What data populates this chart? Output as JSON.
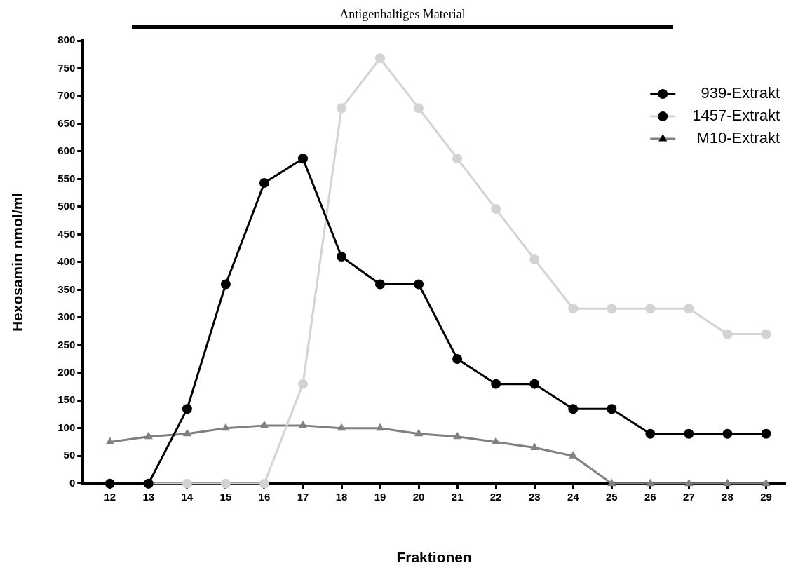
{
  "chart_data": {
    "type": "line",
    "xlabel": "Fraktionen",
    "ylabel": "Hexosamin nmol/ml",
    "x": [
      12,
      13,
      14,
      15,
      16,
      17,
      18,
      19,
      20,
      21,
      22,
      23,
      24,
      25,
      26,
      27,
      28,
      29
    ],
    "series": [
      {
        "name": "939-Extrakt",
        "color": "#000000",
        "marker": "circle",
        "values": [
          0,
          0,
          135,
          360,
          543,
          587,
          410,
          360,
          360,
          225,
          180,
          180,
          135,
          135,
          90,
          90,
          90,
          90
        ]
      },
      {
        "name": "1457-Extrakt",
        "color": "#d3d3d3",
        "marker": "circle",
        "values": [
          null,
          0,
          0,
          0,
          0,
          180,
          678,
          768,
          678,
          587,
          496,
          405,
          316,
          316,
          316,
          316,
          270,
          270
        ]
      },
      {
        "name": "M10-Extrakt",
        "color": "#808080",
        "marker": "triangle",
        "values": [
          75,
          85,
          90,
          100,
          105,
          105,
          100,
          100,
          90,
          85,
          75,
          65,
          50,
          0,
          0,
          0,
          0,
          0
        ]
      }
    ],
    "xlim": [
      11.3,
      29.5
    ],
    "xticks": [
      12,
      13,
      14,
      15,
      16,
      17,
      18,
      19,
      20,
      21,
      22,
      23,
      24,
      25,
      26,
      27,
      28,
      29
    ],
    "ylim": [
      0,
      800
    ],
    "yticks": [
      0,
      50,
      100,
      150,
      200,
      250,
      300,
      350,
      400,
      450,
      500,
      550,
      600,
      650,
      700,
      750,
      800
    ],
    "annotations": [
      "Antigenhaltiges Material"
    ],
    "grid": false,
    "legend": "top right",
    "line_style": "solid"
  }
}
